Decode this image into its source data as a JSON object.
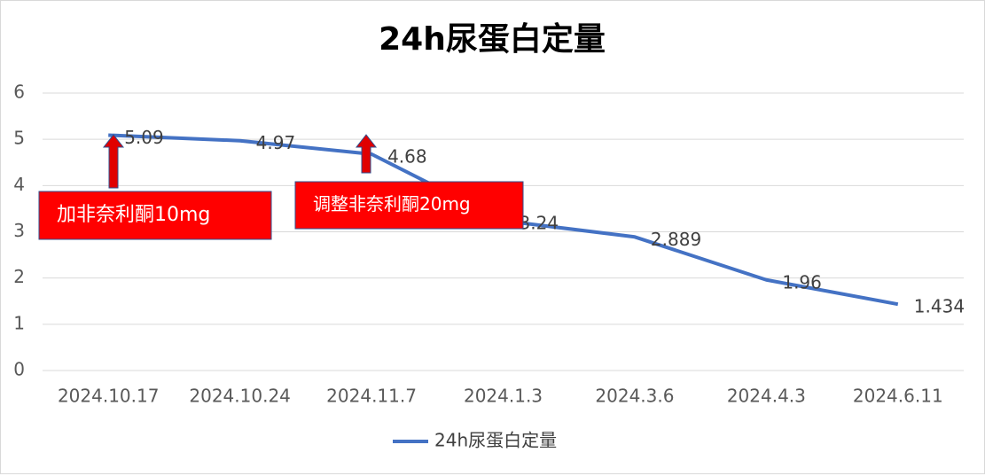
{
  "chart_data": {
    "type": "line",
    "title": "24h尿蛋白定量",
    "categories": [
      "2024.10.17",
      "2024.10.24",
      "2024.11.7",
      "2024.1.3",
      "2024.3.6",
      "2024.4.3",
      "2024.6.11"
    ],
    "series": [
      {
        "name": "24h尿蛋白定量",
        "color": "#4472c4",
        "values": [
          5.09,
          4.97,
          4.68,
          3.24,
          2.889,
          1.96,
          1.434
        ]
      }
    ],
    "ylim": [
      0,
      6
    ],
    "yticks": [
      0,
      1,
      2,
      3,
      4,
      5,
      6
    ],
    "grid": true,
    "legend": "bottom",
    "annotations": [
      "加非奈利酮10mg",
      "调整非奈利酮20mg"
    ]
  }
}
